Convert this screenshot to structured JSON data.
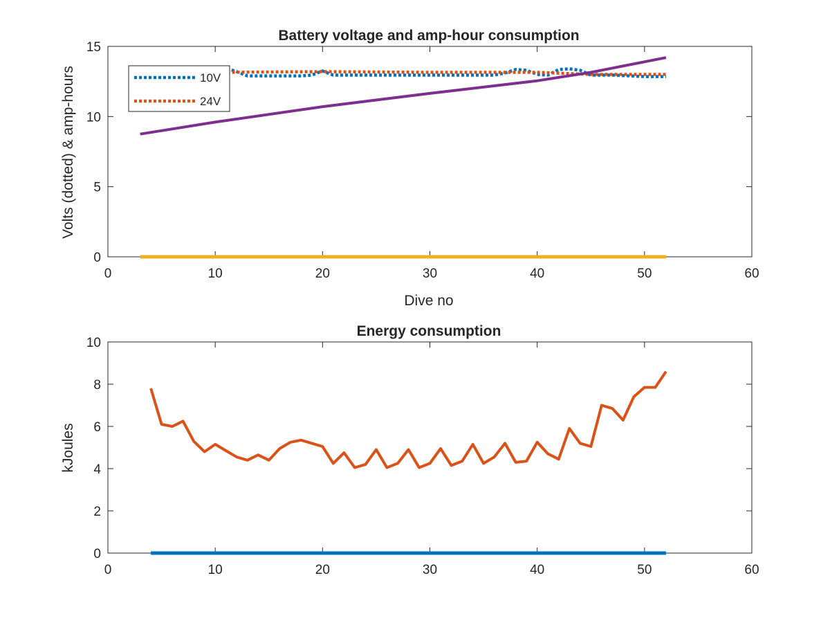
{
  "chart_data": [
    {
      "type": "line",
      "title": "Battery voltage and amp-hour consumption",
      "xlabel": "Dive no",
      "ylabel": "Volts (dotted) & amp-hours",
      "xlim": [
        0,
        60
      ],
      "ylim": [
        0,
        15
      ],
      "xticks": [
        "0",
        "10",
        "20",
        "30",
        "40",
        "50",
        "60"
      ],
      "yticks": [
        "0",
        "5",
        "10",
        "15"
      ],
      "grid": false,
      "legend": {
        "placement": "top-left",
        "entries": [
          "10V",
          "24V"
        ]
      },
      "colors": {
        "10V": "#0072BD",
        "24V": "#D95319",
        "amp_hours": "#7E2F8E",
        "zero_line": "#EDB120"
      },
      "series": [
        {
          "name": "10V",
          "style": "dotted",
          "x": [
            3,
            5,
            10,
            11,
            12,
            13,
            15,
            18,
            19,
            20,
            21,
            25,
            30,
            35,
            36,
            37,
            38,
            39,
            40,
            41,
            42,
            43,
            44,
            45,
            47,
            50,
            52
          ],
          "y": [
            13.2,
            13.25,
            13.3,
            13.45,
            13.2,
            12.9,
            12.9,
            12.9,
            12.95,
            13.25,
            12.95,
            12.95,
            12.95,
            12.95,
            12.95,
            13.1,
            13.35,
            13.3,
            13.0,
            12.95,
            13.35,
            13.4,
            13.3,
            12.95,
            12.95,
            12.85,
            12.85
          ]
        },
        {
          "name": "24V",
          "style": "dotted",
          "x": [
            3,
            10,
            20,
            30,
            40,
            45,
            52
          ],
          "y": [
            13.15,
            13.15,
            13.2,
            13.15,
            13.15,
            13.0,
            13.0
          ]
        },
        {
          "style": "solid",
          "x": [
            3,
            10,
            20,
            30,
            40,
            45,
            52
          ],
          "y": [
            8.75,
            9.6,
            10.7,
            11.65,
            12.55,
            13.15,
            14.2
          ]
        },
        {
          "style": "solid",
          "x": [
            3,
            52
          ],
          "y": [
            0,
            0
          ]
        }
      ]
    },
    {
      "type": "line",
      "title": "Energy consumption",
      "xlabel": "",
      "ylabel": "kJoules",
      "xlim": [
        0,
        60
      ],
      "ylim": [
        0,
        10
      ],
      "xticks": [
        "0",
        "10",
        "20",
        "30",
        "40",
        "50",
        "60"
      ],
      "yticks": [
        "0",
        "2",
        "4",
        "6",
        "8",
        "10"
      ],
      "grid": false,
      "colors": {
        "energy": "#D95319",
        "zero_line": "#0072BD"
      },
      "series": [
        {
          "style": "solid",
          "x": [
            4,
            5,
            6,
            7,
            8,
            9,
            10,
            11,
            12,
            13,
            14,
            15,
            16,
            17,
            18,
            19,
            20,
            21,
            22,
            23,
            24,
            25,
            26,
            27,
            28,
            29,
            30,
            31,
            32,
            33,
            34,
            35,
            36,
            37,
            38,
            39,
            40,
            41,
            42,
            43,
            44,
            45,
            46,
            47,
            48,
            49,
            50,
            51,
            52
          ],
          "y": [
            7.8,
            6.1,
            6.0,
            6.25,
            5.3,
            4.8,
            5.15,
            4.85,
            4.55,
            4.4,
            4.65,
            4.4,
            4.95,
            5.25,
            5.35,
            5.2,
            5.05,
            4.25,
            4.75,
            4.05,
            4.2,
            4.9,
            4.05,
            4.25,
            4.9,
            4.05,
            4.25,
            4.95,
            4.15,
            4.35,
            5.15,
            4.25,
            4.55,
            5.2,
            4.3,
            4.35,
            5.25,
            4.7,
            4.45,
            5.9,
            5.2,
            5.05,
            7.0,
            6.85,
            6.3,
            7.4,
            7.85,
            7.85,
            8.6
          ]
        },
        {
          "style": "solid",
          "x": [
            4,
            52
          ],
          "y": [
            0,
            0
          ]
        }
      ]
    }
  ]
}
